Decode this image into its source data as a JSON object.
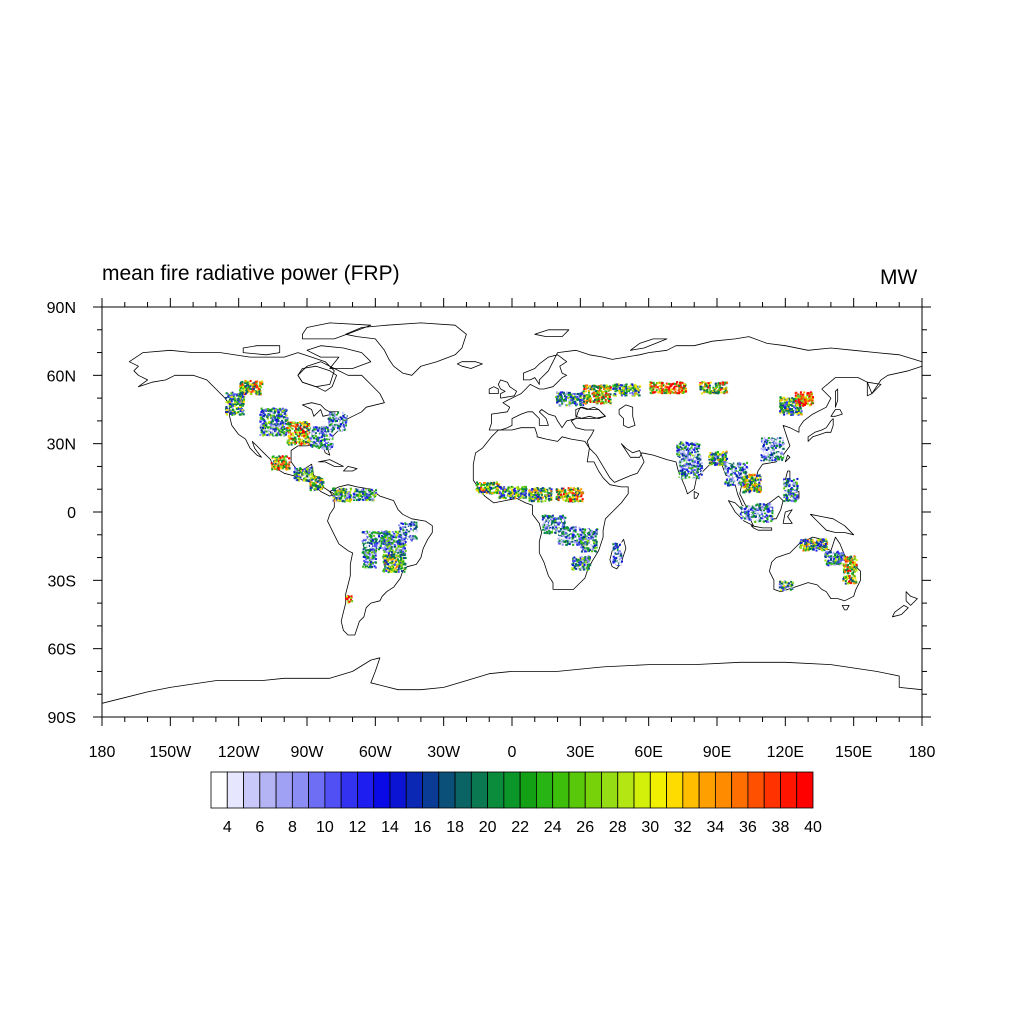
{
  "title": "mean fire radiative power (FRP)",
  "units": "MW",
  "map": {
    "projection": "cylindrical-equidistant",
    "lon_range": [
      -180,
      180
    ],
    "lat_range": [
      -90,
      90
    ],
    "lon_tick_labels": [
      "180",
      "150W",
      "120W",
      "90W",
      "60W",
      "30W",
      "0",
      "30E",
      "60E",
      "90E",
      "120E",
      "150E",
      "180"
    ],
    "lat_tick_labels": [
      "90N",
      "60N",
      "30N",
      "0",
      "30S",
      "60S",
      "90S"
    ],
    "coastline_color": "#000000",
    "background_color": "#ffffff"
  },
  "colorbar": {
    "orientation": "horizontal",
    "tick_labels": [
      "4",
      "6",
      "8",
      "10",
      "12",
      "14",
      "16",
      "18",
      "20",
      "22",
      "24",
      "26",
      "28",
      "30",
      "32",
      "34",
      "36",
      "38",
      "40"
    ],
    "colors": [
      "#ffffff",
      "#e6e6ff",
      "#c8c8fa",
      "#b4b4f5",
      "#a0a0f5",
      "#8c8cf5",
      "#6e6ef5",
      "#5050f5",
      "#3232f0",
      "#1e1ef0",
      "#0a0ae6",
      "#0a14d2",
      "#0a28b4",
      "#0a3c96",
      "#0a5078",
      "#0a6464",
      "#0a7850",
      "#0a8c3c",
      "#0a9628",
      "#14a014",
      "#28b414",
      "#3cbe0a",
      "#5ac80a",
      "#78d20a",
      "#96dc14",
      "#b4e614",
      "#d2f00a",
      "#f0f000",
      "#ffdc00",
      "#ffbe00",
      "#ffa000",
      "#ff8c00",
      "#ff6e00",
      "#ff5000",
      "#ff3200",
      "#ff1400",
      "#ff0000"
    ]
  },
  "chart_data": {
    "type": "heatmap",
    "title": "mean fire radiative power (FRP)",
    "units": "MW",
    "x_range": [
      -180,
      180
    ],
    "y_range": [
      -90,
      90
    ],
    "color_levels": [
      4,
      6,
      8,
      10,
      12,
      14,
      16,
      18,
      20,
      22,
      24,
      26,
      28,
      30,
      32,
      34,
      36,
      38,
      40
    ],
    "fire_regions": [
      {
        "lon": -122,
        "lat": 48,
        "w": 8,
        "h": 10,
        "mean": 22
      },
      {
        "lon": -115,
        "lat": 55,
        "w": 10,
        "h": 6,
        "mean": 28
      },
      {
        "lon": -105,
        "lat": 40,
        "w": 12,
        "h": 12,
        "mean": 18
      },
      {
        "lon": -94,
        "lat": 35,
        "w": 10,
        "h": 10,
        "mean": 30
      },
      {
        "lon": -84,
        "lat": 33,
        "w": 10,
        "h": 10,
        "mean": 14
      },
      {
        "lon": -77,
        "lat": 40,
        "w": 8,
        "h": 8,
        "mean": 12
      },
      {
        "lon": -102,
        "lat": 22,
        "w": 8,
        "h": 6,
        "mean": 32
      },
      {
        "lon": -92,
        "lat": 17,
        "w": 8,
        "h": 6,
        "mean": 20
      },
      {
        "lon": -86,
        "lat": 13,
        "w": 6,
        "h": 6,
        "mean": 26
      },
      {
        "lon": -75,
        "lat": 8,
        "w": 8,
        "h": 6,
        "mean": 22
      },
      {
        "lon": -65,
        "lat": 8,
        "w": 10,
        "h": 5,
        "mean": 18
      },
      {
        "lon": -60,
        "lat": -12,
        "w": 12,
        "h": 8,
        "mean": 14
      },
      {
        "lon": -52,
        "lat": -13,
        "w": 10,
        "h": 10,
        "mean": 18
      },
      {
        "lon": -46,
        "lat": -8,
        "w": 8,
        "h": 8,
        "mean": 12
      },
      {
        "lon": -52,
        "lat": -22,
        "w": 10,
        "h": 8,
        "mean": 24
      },
      {
        "lon": -63,
        "lat": -20,
        "w": 6,
        "h": 8,
        "mean": 16
      },
      {
        "lon": -72,
        "lat": -38,
        "w": 3,
        "h": 3,
        "mean": 36
      },
      {
        "lon": -11,
        "lat": 11,
        "w": 10,
        "h": 5,
        "mean": 26
      },
      {
        "lon": 0,
        "lat": 9,
        "w": 12,
        "h": 5,
        "mean": 22
      },
      {
        "lon": 12,
        "lat": 8,
        "w": 10,
        "h": 6,
        "mean": 24
      },
      {
        "lon": 25,
        "lat": 8,
        "w": 12,
        "h": 6,
        "mean": 30
      },
      {
        "lon": 18,
        "lat": -5,
        "w": 10,
        "h": 8,
        "mean": 14
      },
      {
        "lon": 25,
        "lat": -10,
        "w": 10,
        "h": 8,
        "mean": 12
      },
      {
        "lon": 33,
        "lat": -12,
        "w": 8,
        "h": 10,
        "mean": 16
      },
      {
        "lon": 30,
        "lat": -22,
        "w": 8,
        "h": 6,
        "mean": 20
      },
      {
        "lon": 46,
        "lat": -18,
        "w": 4,
        "h": 10,
        "mean": 10
      },
      {
        "lon": 25,
        "lat": 50,
        "w": 12,
        "h": 6,
        "mean": 18
      },
      {
        "lon": 37,
        "lat": 52,
        "w": 12,
        "h": 8,
        "mean": 30
      },
      {
        "lon": 50,
        "lat": 54,
        "w": 12,
        "h": 5,
        "mean": 22
      },
      {
        "lon": 68,
        "lat": 55,
        "w": 16,
        "h": 5,
        "mean": 34
      },
      {
        "lon": 88,
        "lat": 55,
        "w": 12,
        "h": 5,
        "mean": 28
      },
      {
        "lon": 77,
        "lat": 28,
        "w": 10,
        "h": 6,
        "mean": 16
      },
      {
        "lon": 78,
        "lat": 20,
        "w": 10,
        "h": 10,
        "mean": 14
      },
      {
        "lon": 90,
        "lat": 24,
        "w": 8,
        "h": 6,
        "mean": 22
      },
      {
        "lon": 98,
        "lat": 17,
        "w": 10,
        "h": 10,
        "mean": 12
      },
      {
        "lon": 105,
        "lat": 13,
        "w": 8,
        "h": 8,
        "mean": 26
      },
      {
        "lon": 114,
        "lat": 28,
        "w": 10,
        "h": 10,
        "mean": 12
      },
      {
        "lon": 122,
        "lat": 47,
        "w": 10,
        "h": 8,
        "mean": 22
      },
      {
        "lon": 128,
        "lat": 50,
        "w": 8,
        "h": 6,
        "mean": 38
      },
      {
        "lon": 110,
        "lat": 0,
        "w": 8,
        "h": 8,
        "mean": 14
      },
      {
        "lon": 103,
        "lat": 0,
        "w": 6,
        "h": 6,
        "mean": 12
      },
      {
        "lon": 122,
        "lat": 10,
        "w": 6,
        "h": 10,
        "mean": 16
      },
      {
        "lon": 132,
        "lat": -14,
        "w": 12,
        "h": 5,
        "mean": 24
      },
      {
        "lon": 148,
        "lat": -25,
        "w": 6,
        "h": 12,
        "mean": 30
      },
      {
        "lon": 120,
        "lat": -32,
        "w": 6,
        "h": 4,
        "mean": 20
      },
      {
        "lon": 141,
        "lat": -20,
        "w": 8,
        "h": 6,
        "mean": 18
      }
    ]
  }
}
